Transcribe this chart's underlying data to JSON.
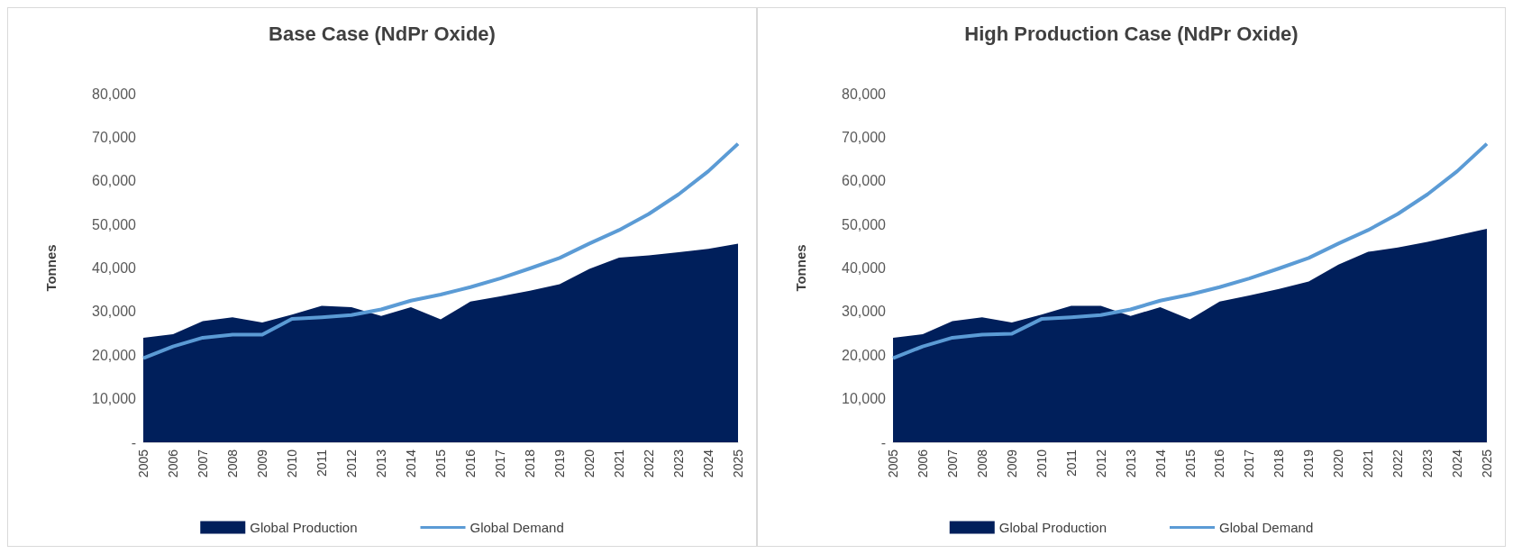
{
  "chart_data": [
    {
      "type": "area",
      "title": "Base Case (NdPr Oxide)",
      "ylabel": "Tonnes",
      "categories": [
        "2005",
        "2006",
        "2007",
        "2008",
        "2009",
        "2010",
        "2011",
        "2012",
        "2013",
        "2014",
        "2015",
        "2016",
        "2017",
        "2018",
        "2019",
        "2020",
        "2021",
        "2022",
        "2023",
        "2024",
        "2025"
      ],
      "series": [
        {
          "name": "Global Production",
          "type": "area",
          "color": "#001f5b",
          "values": [
            24000,
            24800,
            27800,
            28700,
            27500,
            29300,
            31300,
            31000,
            29000,
            31000,
            28200,
            32300,
            33500,
            34800,
            36300,
            39800,
            42400,
            42900,
            43600,
            44400,
            45600
          ]
        },
        {
          "name": "Global Demand",
          "type": "line",
          "color": "#5b9bd5",
          "values": [
            19300,
            22000,
            24000,
            24700,
            24700,
            28300,
            28700,
            29200,
            30500,
            32500,
            33900,
            35600,
            37600,
            39900,
            42300,
            45600,
            48700,
            52400,
            56900,
            62200,
            68500
          ]
        }
      ],
      "ylim": [
        0,
        80000
      ],
      "yticks": [
        {
          "value": 0,
          "label": "-"
        },
        {
          "value": 10000,
          "label": "10,000"
        },
        {
          "value": 20000,
          "label": "20,000"
        },
        {
          "value": 30000,
          "label": "30,000"
        },
        {
          "value": 40000,
          "label": "40,000"
        },
        {
          "value": 50000,
          "label": "50,000"
        },
        {
          "value": 60000,
          "label": "60,000"
        },
        {
          "value": 70000,
          "label": "70,000"
        },
        {
          "value": 80000,
          "label": "80,000"
        }
      ],
      "grid": false,
      "legend": "bottom",
      "marker": "none"
    },
    {
      "type": "area",
      "title": "High Production Case (NdPr Oxide)",
      "ylabel": "Tonnes",
      "categories": [
        "2005",
        "2006",
        "2007",
        "2008",
        "2009",
        "2010",
        "2011",
        "2012",
        "2013",
        "2014",
        "2015",
        "2016",
        "2017",
        "2018",
        "2019",
        "2020",
        "2021",
        "2022",
        "2023",
        "2024",
        "2025"
      ],
      "series": [
        {
          "name": "Global Production",
          "type": "area",
          "color": "#001f5b",
          "values": [
            24000,
            24800,
            27800,
            28700,
            27500,
            29300,
            31300,
            31300,
            29000,
            31000,
            28200,
            32300,
            33700,
            35200,
            36900,
            40800,
            43700,
            44700,
            46000,
            47500,
            49000
          ]
        },
        {
          "name": "Global Demand",
          "type": "line",
          "color": "#5b9bd5",
          "values": [
            19300,
            22000,
            24000,
            24700,
            24900,
            28300,
            28700,
            29200,
            30500,
            32500,
            33900,
            35600,
            37600,
            39900,
            42300,
            45600,
            48700,
            52400,
            56900,
            62200,
            68500
          ]
        }
      ],
      "ylim": [
        0,
        80000
      ],
      "yticks": [
        {
          "value": 0,
          "label": "-"
        },
        {
          "value": 10000,
          "label": "10,000"
        },
        {
          "value": 20000,
          "label": "20,000"
        },
        {
          "value": 30000,
          "label": "30,000"
        },
        {
          "value": 40000,
          "label": "40,000"
        },
        {
          "value": 50000,
          "label": "50,000"
        },
        {
          "value": 60000,
          "label": "60,000"
        },
        {
          "value": 70000,
          "label": "70,000"
        },
        {
          "value": 80000,
          "label": "80,000"
        }
      ],
      "grid": false,
      "legend": "bottom",
      "marker": "none"
    }
  ]
}
